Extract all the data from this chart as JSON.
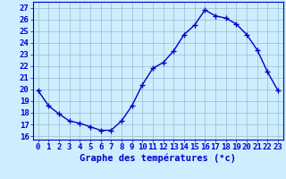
{
  "hours": [
    0,
    1,
    2,
    3,
    4,
    5,
    6,
    7,
    8,
    9,
    10,
    11,
    12,
    13,
    14,
    15,
    16,
    17,
    18,
    19,
    20,
    21,
    22,
    23
  ],
  "temps": [
    19.9,
    18.6,
    17.9,
    17.3,
    17.1,
    16.8,
    16.5,
    16.5,
    17.3,
    18.6,
    20.4,
    21.8,
    22.3,
    23.3,
    24.7,
    25.5,
    26.8,
    26.3,
    26.1,
    25.6,
    24.7,
    23.4,
    21.5,
    19.9
  ],
  "line_color": "#0000cc",
  "marker": "+",
  "marker_size": 4,
  "marker_lw": 1.0,
  "bg_color": "#cceeff",
  "grid_color": "#99bbcc",
  "xlabel": "Graphe des températures (°c)",
  "ylabel_ticks": [
    16,
    17,
    18,
    19,
    20,
    21,
    22,
    23,
    24,
    25,
    26,
    27
  ],
  "ylim": [
    15.7,
    27.5
  ],
  "xlim": [
    -0.5,
    23.5
  ],
  "axis_label_color": "#0000cc",
  "tick_label_color": "#0000cc",
  "xlabel_fontsize": 7.5,
  "tick_fontsize": 6.5,
  "line_width": 1.0
}
